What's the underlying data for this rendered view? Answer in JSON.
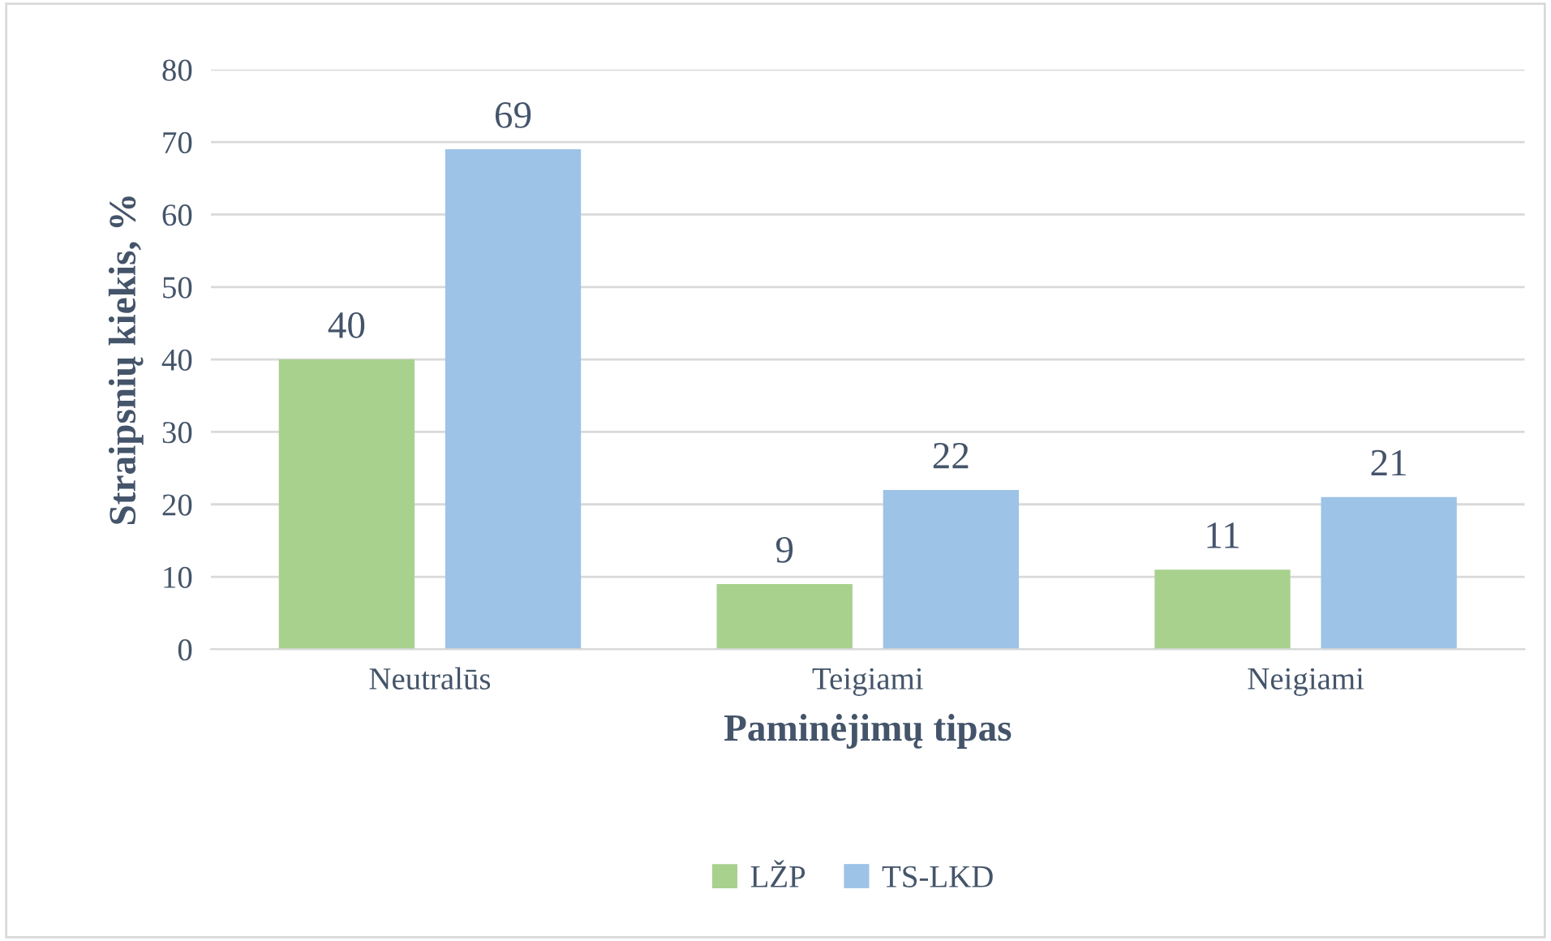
{
  "chart_data": {
    "type": "bar",
    "xlabel": "Paminėjimų tipas",
    "ylabel": "Straipsnių kiekis, %",
    "categories": [
      "Neutralūs",
      "Teigiami",
      "Neigiami"
    ],
    "series": [
      {
        "name": "LŽP",
        "color": "#a9d18e",
        "values": [
          40,
          9,
          11
        ]
      },
      {
        "name": "TS-LKD",
        "color": "#9dc3e6",
        "values": [
          69,
          22,
          21
        ]
      }
    ],
    "ylim": [
      0,
      80
    ],
    "yticks": [
      0,
      10,
      20,
      30,
      40,
      50,
      60,
      70,
      80
    ],
    "grid": "y",
    "legend": "bottom",
    "data_labels": true
  }
}
